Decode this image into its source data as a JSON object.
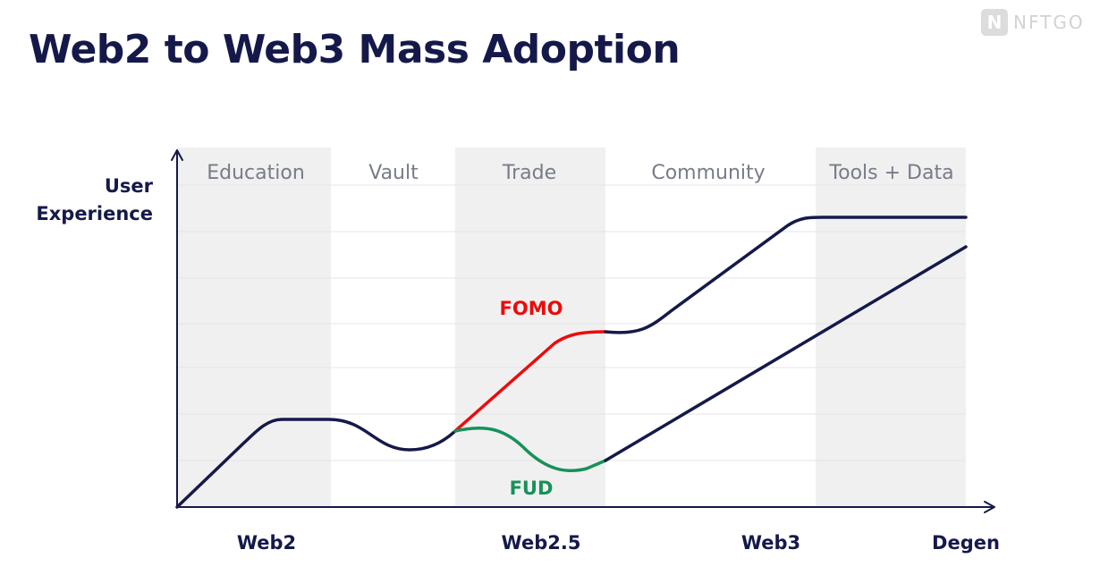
{
  "title": "Web2 to Web3 Mass Adoption",
  "brand": {
    "logo_letter": "N",
    "name": "NFTGO",
    "logo_icon": "nftgo-logo-icon"
  },
  "phases": [
    "Education",
    "Vault",
    "Trade",
    "Community",
    "Tools + Data"
  ],
  "y_axis_label": [
    "User",
    "Experience"
  ],
  "x_axis_labels": [
    "Web2",
    "Web2.5",
    "Web3",
    "Degen"
  ],
  "curve_labels": {
    "fomo": "FOMO",
    "fud": "FUD"
  },
  "colors": {
    "title": "#15194a",
    "main_curve": "#15194a",
    "fomo": "#ee0a0a",
    "fud": "#17915a",
    "shaded_band": "#f0f0f0",
    "phase_label": "#777c88"
  }
}
